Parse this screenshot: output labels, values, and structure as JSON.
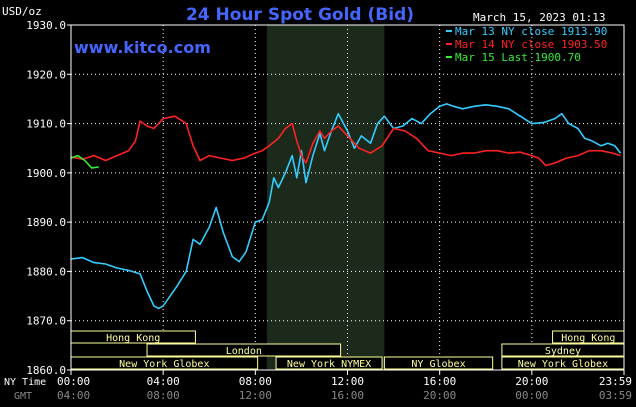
{
  "chart_data": {
    "type": "line",
    "title": "24 Hour Spot Gold (Bid)",
    "watermark": "www.kitco.com",
    "timestamp": "March 15, 2023 01:13",
    "ylabel": "USD/oz",
    "ylim": [
      1860,
      1930
    ],
    "yticks": [
      "1860.0",
      "1870.0",
      "1880.0",
      "1890.0",
      "1900.0",
      "1910.0",
      "1920.0",
      "1930.0"
    ],
    "xlim": [
      0,
      24
    ],
    "x_row1_label": "NY Time",
    "x_row2_label": "GMT",
    "x_ticks_ny": [
      "00:00",
      "04:00",
      "08:00",
      "12:00",
      "16:00",
      "20:00",
      "23:59"
    ],
    "x_ticks_gmt": [
      "04:00",
      "08:00",
      "12:00",
      "16:00",
      "20:00",
      "00:00",
      "03:59"
    ],
    "x_tick_hours": [
      0,
      4,
      8,
      12,
      16,
      20,
      24
    ],
    "highlight_band": [
      8.5,
      13.6
    ],
    "colors": {
      "background": "#000000",
      "plot": "#000000",
      "band": "#1c2a1c",
      "grid": "#ffffff",
      "title": "#4466ff",
      "watermark": "#4466ff",
      "session": "#ffff99"
    },
    "legend": [
      {
        "label": "Mar 13 NY close 1913.90",
        "color": "#33ccff"
      },
      {
        "label": "Mar 14 NY close 1903.50",
        "color": "#ff2222"
      },
      {
        "label": "Mar 15 Last 1900.70",
        "color": "#33ee33"
      }
    ],
    "sessions": [
      {
        "name": "Hong Kong",
        "start": 0,
        "end": 5.4,
        "row": 0
      },
      {
        "name": "London",
        "start": 3.3,
        "end": 11.7,
        "row": 1
      },
      {
        "name": "New York Globex",
        "start": 0,
        "end": 8.1,
        "row": 2
      },
      {
        "name": "New York NYMEX",
        "start": 8.9,
        "end": 13.5,
        "row": 2
      },
      {
        "name": "NY Globex",
        "start": 13.6,
        "end": 18.3,
        "row": 2
      },
      {
        "name": "Hong Kong",
        "start": 20.9,
        "end": 24,
        "row": 0
      },
      {
        "name": "Sydney",
        "start": 18.7,
        "end": 24,
        "row": 1
      },
      {
        "name": "New York Globex",
        "start": 18.7,
        "end": 24,
        "row": 2
      }
    ],
    "series": [
      {
        "name": "Mar 13 NY close 1913.90",
        "color": "#33ccff",
        "x": [
          0,
          0.5,
          1,
          1.5,
          2,
          2.5,
          3,
          3.3,
          3.6,
          3.8,
          4,
          4.3,
          4.6,
          5,
          5.3,
          5.6,
          6,
          6.3,
          6.6,
          7,
          7.3,
          7.6,
          8,
          8.3,
          8.6,
          8.8,
          9,
          9.3,
          9.6,
          9.8,
          10,
          10.2,
          10.5,
          10.8,
          11,
          11.3,
          11.6,
          12,
          12.3,
          12.6,
          13,
          13.3,
          13.6,
          14,
          14.4,
          14.8,
          15.2,
          15.6,
          16,
          16.3,
          16.6,
          17,
          17.5,
          18,
          18.5,
          19,
          19.5,
          20,
          20.5,
          21,
          21.3,
          21.6,
          22,
          22.3,
          22.6,
          23,
          23.3,
          23.6,
          23.85
        ],
        "y": [
          1882.5,
          1882.8,
          1881.8,
          1881.5,
          1880.7,
          1880.2,
          1879.5,
          1876.0,
          1873.0,
          1872.5,
          1873.0,
          1875.0,
          1877.0,
          1880.0,
          1886.5,
          1885.5,
          1889.0,
          1893.0,
          1888.0,
          1883.0,
          1882.0,
          1884.0,
          1890.0,
          1890.5,
          1894.0,
          1899.0,
          1897.0,
          1900.0,
          1903.5,
          1899.0,
          1904.5,
          1898.0,
          1903.5,
          1908.0,
          1904.5,
          1908.5,
          1912.0,
          1908.5,
          1905.0,
          1907.5,
          1906.0,
          1910.0,
          1911.5,
          1909.0,
          1909.5,
          1911.0,
          1910.0,
          1912.0,
          1913.5,
          1914.0,
          1913.5,
          1913.0,
          1913.5,
          1913.8,
          1913.5,
          1913.0,
          1911.5,
          1910.0,
          1910.2,
          1911.0,
          1912.0,
          1910.0,
          1909.0,
          1907.0,
          1906.5,
          1905.5,
          1906.0,
          1905.5,
          1904.0
        ]
      },
      {
        "name": "Mar 14 NY close 1903.50",
        "color": "#ff2222",
        "x": [
          0,
          0.5,
          1,
          1.5,
          2,
          2.5,
          2.8,
          3,
          3.3,
          3.6,
          4,
          4.5,
          5,
          5.3,
          5.6,
          6,
          6.5,
          7,
          7.5,
          8,
          8.3,
          8.6,
          9,
          9.3,
          9.6,
          9.8,
          10,
          10.2,
          10.5,
          10.8,
          11,
          11.3,
          11.6,
          12,
          12.5,
          13,
          13.5,
          14,
          14.5,
          15,
          15.5,
          16,
          16.5,
          17,
          17.5,
          18,
          18.5,
          19,
          19.5,
          20,
          20.3,
          20.6,
          21,
          21.5,
          22,
          22.5,
          23,
          23.5,
          23.85
        ],
        "y": [
          1903.2,
          1902.8,
          1903.5,
          1902.5,
          1903.5,
          1904.5,
          1906.5,
          1910.5,
          1909.5,
          1909.0,
          1911.0,
          1911.5,
          1910.0,
          1905.5,
          1902.5,
          1903.5,
          1903.0,
          1902.5,
          1903.0,
          1904.0,
          1904.5,
          1905.5,
          1907.0,
          1909.0,
          1910.0,
          1906.5,
          1903.5,
          1902.0,
          1906.0,
          1908.5,
          1907.0,
          1908.5,
          1909.5,
          1907.5,
          1905.0,
          1904.0,
          1905.5,
          1909.0,
          1908.5,
          1907.0,
          1904.5,
          1904.0,
          1903.5,
          1904.0,
          1904.0,
          1904.5,
          1904.5,
          1904.0,
          1904.2,
          1903.5,
          1903.0,
          1901.5,
          1902.0,
          1903.0,
          1903.5,
          1904.5,
          1904.5,
          1904.0,
          1903.5
        ]
      },
      {
        "name": "Mar 15 Last 1900.70",
        "color": "#33ee33",
        "x": [
          0,
          0.3,
          0.6,
          0.9,
          1.2
        ],
        "y": [
          1903.0,
          1903.5,
          1902.5,
          1901.0,
          1901.2
        ]
      }
    ]
  }
}
